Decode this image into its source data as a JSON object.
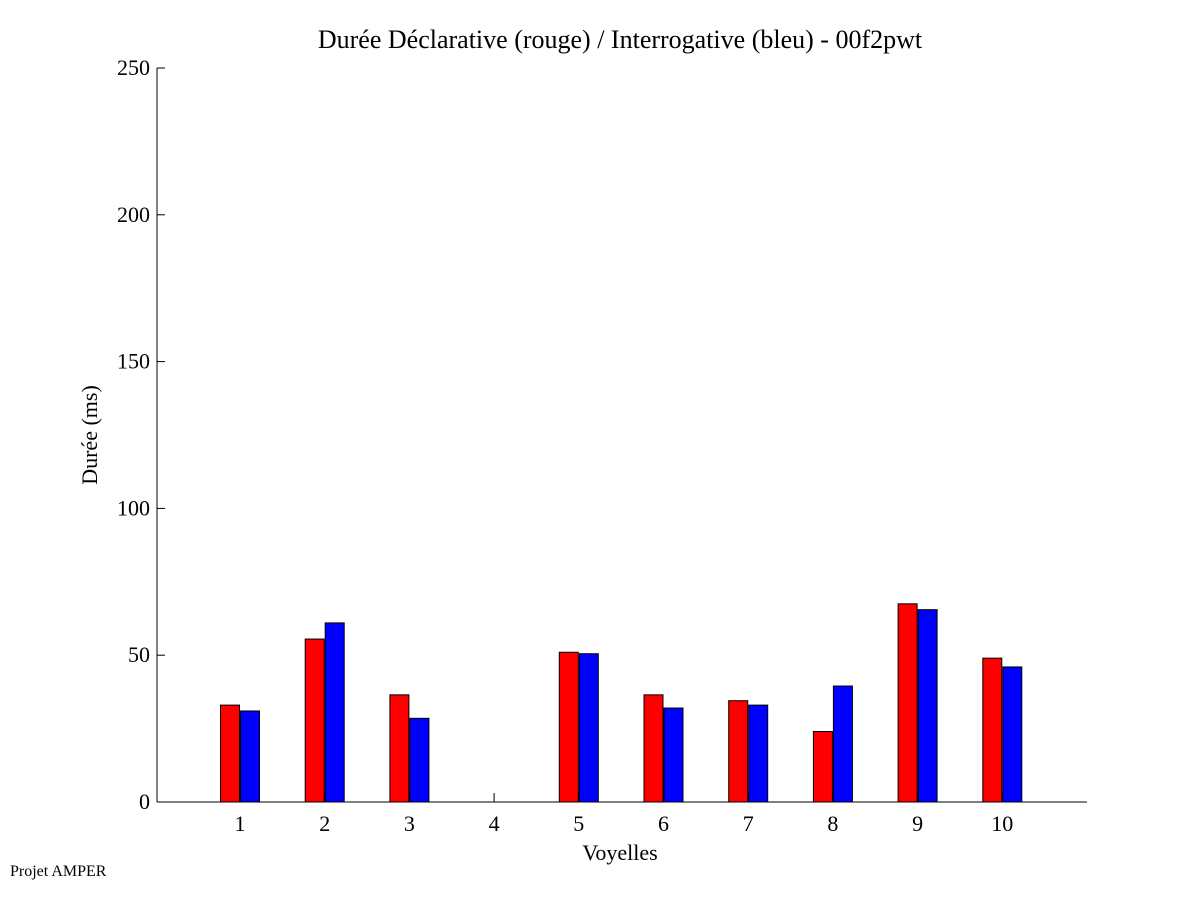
{
  "chart_data": {
    "type": "bar",
    "title": "Durée Déclarative (rouge) / Interrogative (bleu) - 00f2pwt",
    "xlabel": "Voyelles",
    "ylabel": "Durée (ms)",
    "ylim": [
      0,
      250
    ],
    "yticks": [
      0,
      50,
      100,
      150,
      200,
      250
    ],
    "categories": [
      "1",
      "2",
      "3",
      "4",
      "5",
      "6",
      "7",
      "8",
      "9",
      "10"
    ],
    "series": [
      {
        "color": "#ff0000",
        "values": [
          33,
          55.5,
          36.5,
          0,
          51,
          36.5,
          34.5,
          24,
          67.5,
          49
        ]
      },
      {
        "color": "#0000ff",
        "values": [
          31,
          61,
          28.5,
          0,
          50.5,
          32,
          33,
          39.5,
          65.5,
          46
        ]
      }
    ],
    "grid": false,
    "legend": "none"
  },
  "footer": {
    "label": "Projet AMPER"
  }
}
